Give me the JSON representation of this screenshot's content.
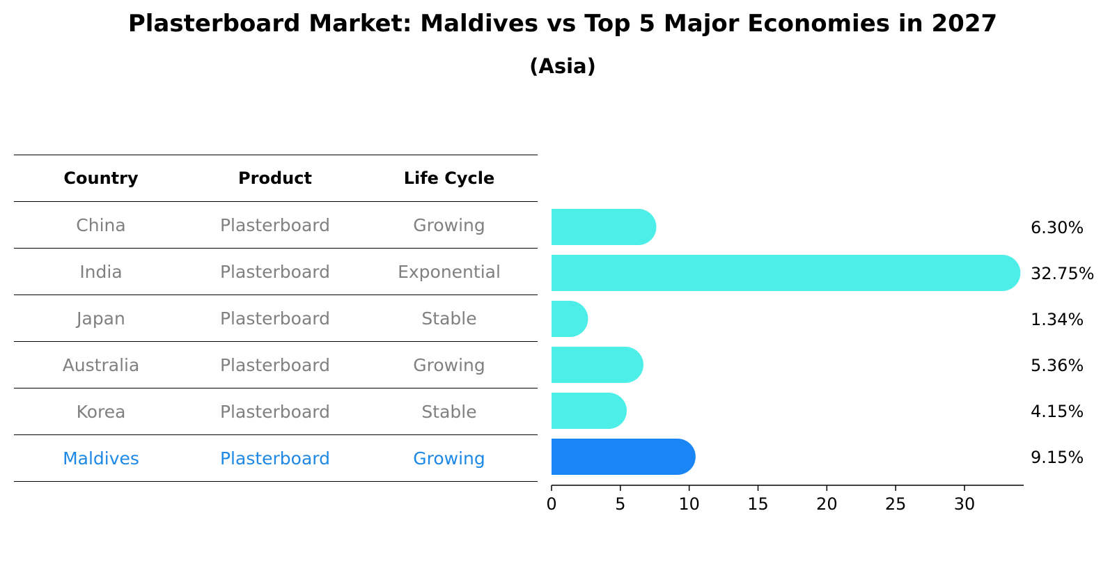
{
  "title": "Plasterboard Market: Maldives vs Top 5 Major Economies in 2027",
  "subtitle": "(Asia)",
  "table": {
    "headers": [
      "Country",
      "Product",
      "Life Cycle"
    ],
    "rows": [
      [
        "China",
        "Plasterboard",
        "Growing"
      ],
      [
        "India",
        "Plasterboard",
        "Exponential"
      ],
      [
        "Japan",
        "Plasterboard",
        "Stable"
      ],
      [
        "Australia",
        "Plasterboard",
        "Growing"
      ],
      [
        "Korea",
        "Plasterboard",
        "Stable"
      ],
      [
        "Maldives",
        "Plasterboard",
        "Growing"
      ]
    ],
    "highlight_row": 5
  },
  "chart_data": {
    "type": "bar",
    "orientation": "horizontal",
    "title": "Plasterboard Market: Maldives vs Top 5 Major Economies in 2027",
    "subtitle": "(Asia)",
    "categories": [
      "China",
      "India",
      "Japan",
      "Australia",
      "Korea",
      "Maldives"
    ],
    "values": [
      6.3,
      32.75,
      1.34,
      5.36,
      4.15,
      9.15
    ],
    "value_labels": [
      "6.30%",
      "32.75%",
      "1.34%",
      "5.36%",
      "4.15%",
      "9.15%"
    ],
    "xlim": [
      0,
      34.3
    ],
    "xticks": [
      0,
      5,
      10,
      15,
      20,
      25,
      30
    ],
    "xlabel": "",
    "ylabel": "",
    "grid": false,
    "colors": {
      "default": "#4deee8",
      "highlight": "#1a85f5"
    },
    "highlight_index": 5
  }
}
